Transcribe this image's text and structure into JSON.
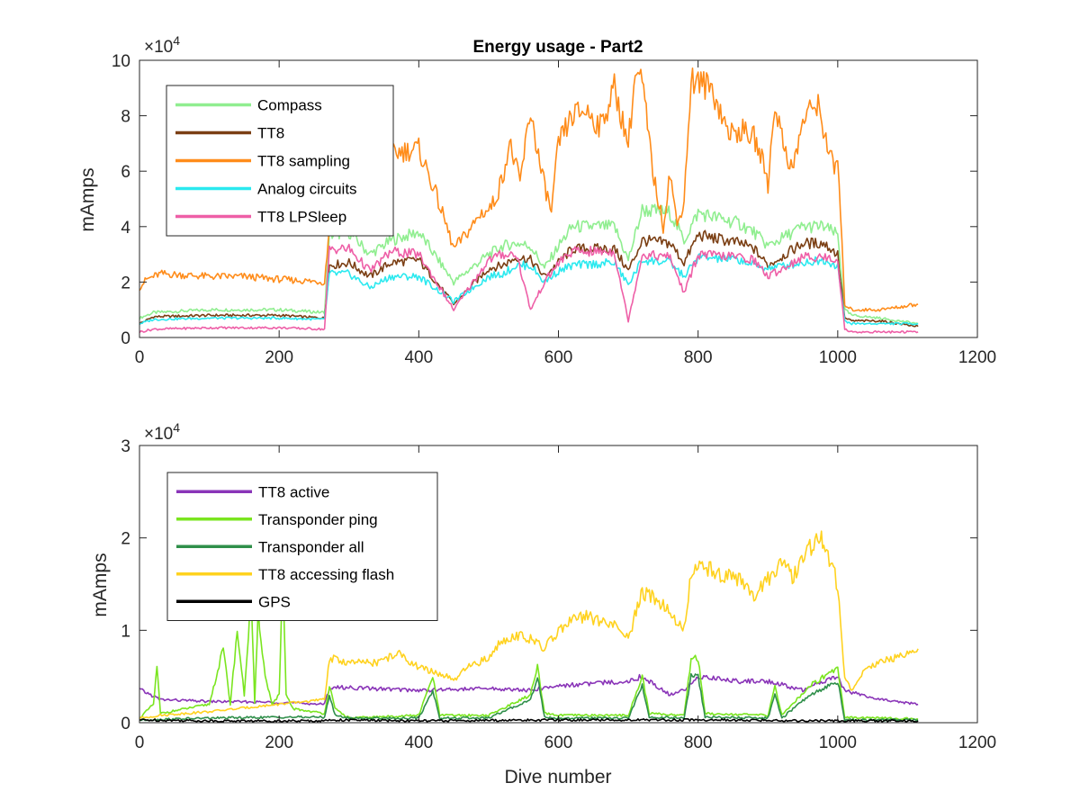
{
  "chart_data": [
    {
      "type": "line",
      "title": "Energy usage - Part2",
      "xlabel": "",
      "ylabel": "mAmps",
      "xlim": [
        0,
        1200
      ],
      "ylim": [
        0,
        100000
      ],
      "xticks": [
        "0",
        "200",
        "400",
        "600",
        "800",
        "1000",
        "1200"
      ],
      "yticks": [
        "0",
        "2",
        "4",
        "6",
        "8",
        "10"
      ],
      "exponent_base": "×10",
      "exponent_power": "4",
      "legend_position": "top-left",
      "series": [
        {
          "name": "Compass",
          "color": "#90ee90",
          "x": [
            0,
            20,
            100,
            200,
            265,
            272,
            300,
            330,
            360,
            400,
            450,
            500,
            520,
            540,
            560,
            580,
            600,
            620,
            680,
            700,
            720,
            760,
            780,
            800,
            860,
            880,
            900,
            950,
            980,
            1000,
            1010,
            1020,
            1060,
            1115
          ],
          "y": [
            7000,
            9000,
            10000,
            10000,
            9000,
            37000,
            38000,
            30000,
            35000,
            38000,
            20000,
            30000,
            33000,
            34000,
            33000,
            25000,
            33000,
            40000,
            40000,
            28000,
            46000,
            45000,
            35000,
            45000,
            41000,
            38000,
            33000,
            40000,
            40000,
            37000,
            10000,
            8000,
            7000,
            5000
          ]
        },
        {
          "name": "TT8",
          "color": "#7b3f14",
          "x": [
            0,
            20,
            100,
            200,
            265,
            272,
            300,
            330,
            360,
            400,
            450,
            500,
            520,
            540,
            560,
            580,
            600,
            620,
            680,
            700,
            720,
            760,
            780,
            800,
            860,
            880,
            900,
            950,
            980,
            1000,
            1010,
            1020,
            1060,
            1115
          ],
          "y": [
            5000,
            7500,
            8000,
            8000,
            7000,
            26000,
            27000,
            22000,
            27000,
            28000,
            12000,
            25000,
            26000,
            29000,
            28000,
            22000,
            27000,
            32000,
            32000,
            24000,
            35000,
            34000,
            27000,
            37000,
            34000,
            32000,
            26000,
            34000,
            34000,
            30000,
            7000,
            6000,
            6000,
            4000
          ]
        },
        {
          "name": "TT8 sampling",
          "color": "#ff8c1a",
          "x": [
            0,
            10,
            30,
            100,
            150,
            200,
            265,
            272,
            290,
            310,
            340,
            370,
            400,
            420,
            440,
            450,
            470,
            490,
            500,
            510,
            520,
            530,
            545,
            560,
            575,
            590,
            600,
            620,
            640,
            660,
            680,
            700,
            710,
            720,
            735,
            750,
            760,
            770,
            780,
            790,
            800,
            820,
            840,
            850,
            860,
            880,
            895,
            900,
            910,
            920,
            935,
            950,
            970,
            985,
            995,
            1000,
            1010,
            1020,
            1060,
            1115
          ],
          "y": [
            18000,
            21000,
            23000,
            22000,
            22000,
            21000,
            20000,
            40000,
            57000,
            62000,
            64000,
            67000,
            68000,
            55000,
            40000,
            32000,
            38000,
            45000,
            46000,
            50000,
            58000,
            70000,
            56000,
            82000,
            60000,
            45000,
            70000,
            80000,
            82000,
            76000,
            90000,
            70000,
            95000,
            92000,
            60000,
            40000,
            60000,
            40000,
            50000,
            93000,
            92000,
            90000,
            76000,
            73000,
            75000,
            72000,
            62000,
            55000,
            85000,
            72000,
            60000,
            78000,
            85000,
            70000,
            60000,
            65000,
            12000,
            10000,
            10000,
            12000
          ]
        },
        {
          "name": "Analog circuits",
          "color": "#2be9ef",
          "x": [
            0,
            20,
            100,
            200,
            265,
            272,
            300,
            330,
            360,
            400,
            450,
            500,
            520,
            540,
            560,
            580,
            600,
            620,
            680,
            700,
            720,
            760,
            780,
            800,
            860,
            880,
            900,
            950,
            980,
            1000,
            1010,
            1020,
            1060,
            1115
          ],
          "y": [
            5000,
            6500,
            7000,
            7000,
            6500,
            23000,
            23000,
            18000,
            22000,
            22000,
            13000,
            22000,
            23000,
            26000,
            26000,
            20000,
            24000,
            26000,
            27000,
            19000,
            28000,
            27000,
            22000,
            29000,
            28000,
            26000,
            25000,
            27000,
            28000,
            26000,
            6000,
            5000,
            5000,
            5000
          ]
        },
        {
          "name": "TT8 LPSleep",
          "color": "#ee5fa7",
          "x": [
            0,
            20,
            100,
            200,
            265,
            272,
            300,
            330,
            360,
            400,
            450,
            500,
            520,
            540,
            560,
            580,
            600,
            620,
            680,
            700,
            720,
            760,
            780,
            800,
            860,
            880,
            900,
            950,
            980,
            1000,
            1010,
            1020,
            1060,
            1115
          ],
          "y": [
            2000,
            3000,
            3500,
            3500,
            3000,
            32000,
            32000,
            24000,
            31000,
            30000,
            10000,
            28000,
            30000,
            30000,
            10000,
            20000,
            27000,
            31000,
            31000,
            6000,
            30000,
            29000,
            16000,
            30000,
            29000,
            28000,
            22000,
            29000,
            29000,
            28000,
            3000,
            2000,
            2000,
            2000
          ]
        }
      ]
    },
    {
      "type": "line",
      "title": "",
      "xlabel": "Dive number",
      "ylabel": "mAmps",
      "xlim": [
        0,
        1200
      ],
      "ylim": [
        0,
        30000
      ],
      "xticks": [
        "0",
        "200",
        "400",
        "600",
        "800",
        "1000",
        "1200"
      ],
      "yticks": [
        "0",
        "1",
        "2",
        "3"
      ],
      "exponent_base": "×10",
      "exponent_power": "4",
      "legend_position": "top-left",
      "series": [
        {
          "name": "TT8 active",
          "color": "#8a35b8",
          "x": [
            0,
            30,
            100,
            200,
            265,
            272,
            300,
            400,
            500,
            560,
            600,
            700,
            720,
            760,
            780,
            800,
            860,
            900,
            950,
            980,
            1000,
            1010,
            1060,
            1115
          ],
          "y": [
            3600,
            2500,
            2300,
            2200,
            2000,
            3800,
            3800,
            3500,
            3700,
            3500,
            4000,
            4500,
            5000,
            3000,
            3500,
            5000,
            4500,
            4500,
            3500,
            4500,
            5000,
            3500,
            2500,
            2000
          ]
        },
        {
          "name": "Transponder ping",
          "color": "#7ae51f",
          "x": [
            0,
            20,
            25,
            30,
            100,
            120,
            130,
            140,
            150,
            160,
            165,
            170,
            180,
            190,
            200,
            205,
            210,
            220,
            265,
            272,
            280,
            300,
            400,
            420,
            430,
            500,
            560,
            570,
            580,
            600,
            700,
            720,
            730,
            780,
            790,
            800,
            810,
            900,
            910,
            920,
            960,
            1000,
            1010,
            1060,
            1115
          ],
          "y": [
            500,
            2000,
            6000,
            1000,
            2000,
            8000,
            2000,
            10000,
            3000,
            14000,
            2000,
            12000,
            5000,
            2000,
            3000,
            16000,
            3000,
            1500,
            1000,
            4000,
            1500,
            500,
            800,
            5000,
            800,
            800,
            3000,
            6000,
            1000,
            800,
            800,
            5000,
            1000,
            800,
            7000,
            7000,
            1000,
            800,
            4000,
            800,
            4000,
            6000,
            600,
            500,
            400
          ]
        },
        {
          "name": "Transponder all",
          "color": "#2f8f4a",
          "x": [
            0,
            100,
            200,
            265,
            272,
            280,
            300,
            400,
            420,
            430,
            500,
            560,
            570,
            580,
            600,
            700,
            720,
            730,
            780,
            790,
            800,
            810,
            900,
            910,
            920,
            960,
            1000,
            1010,
            1115
          ],
          "y": [
            300,
            500,
            600,
            600,
            3000,
            800,
            500,
            500,
            3500,
            500,
            500,
            2500,
            5000,
            600,
            500,
            500,
            4000,
            600,
            500,
            5000,
            5000,
            600,
            500,
            3000,
            500,
            3000,
            4500,
            300,
            300
          ]
        },
        {
          "name": "TT8 accessing flash",
          "color": "#ffd21f",
          "x": [
            0,
            30,
            100,
            200,
            265,
            272,
            300,
            340,
            370,
            400,
            440,
            450,
            470,
            500,
            520,
            540,
            560,
            580,
            600,
            620,
            640,
            660,
            680,
            700,
            715,
            720,
            740,
            760,
            780,
            790,
            800,
            820,
            840,
            860,
            880,
            900,
            920,
            935,
            960,
            975,
            980,
            990,
            1000,
            1010,
            1020,
            1040,
            1080,
            1115
          ],
          "y": [
            500,
            800,
            1200,
            2000,
            2500,
            7000,
            6500,
            6500,
            7500,
            6000,
            5000,
            4500,
            6000,
            7000,
            9000,
            9500,
            9000,
            8000,
            10000,
            11000,
            11500,
            11000,
            10500,
            9000,
            13000,
            14000,
            13500,
            12000,
            10000,
            16000,
            17000,
            16500,
            16000,
            15500,
            13500,
            15500,
            17500,
            15500,
            19000,
            20500,
            19000,
            17000,
            15000,
            5000,
            3500,
            6000,
            7000,
            8000
          ]
        },
        {
          "name": "GPS",
          "color": "#000000",
          "x": [
            0,
            100,
            200,
            265,
            272,
            400,
            600,
            800,
            1000,
            1115
          ],
          "y": [
            300,
            200,
            200,
            200,
            300,
            200,
            300,
            300,
            200,
            200
          ]
        }
      ]
    }
  ]
}
